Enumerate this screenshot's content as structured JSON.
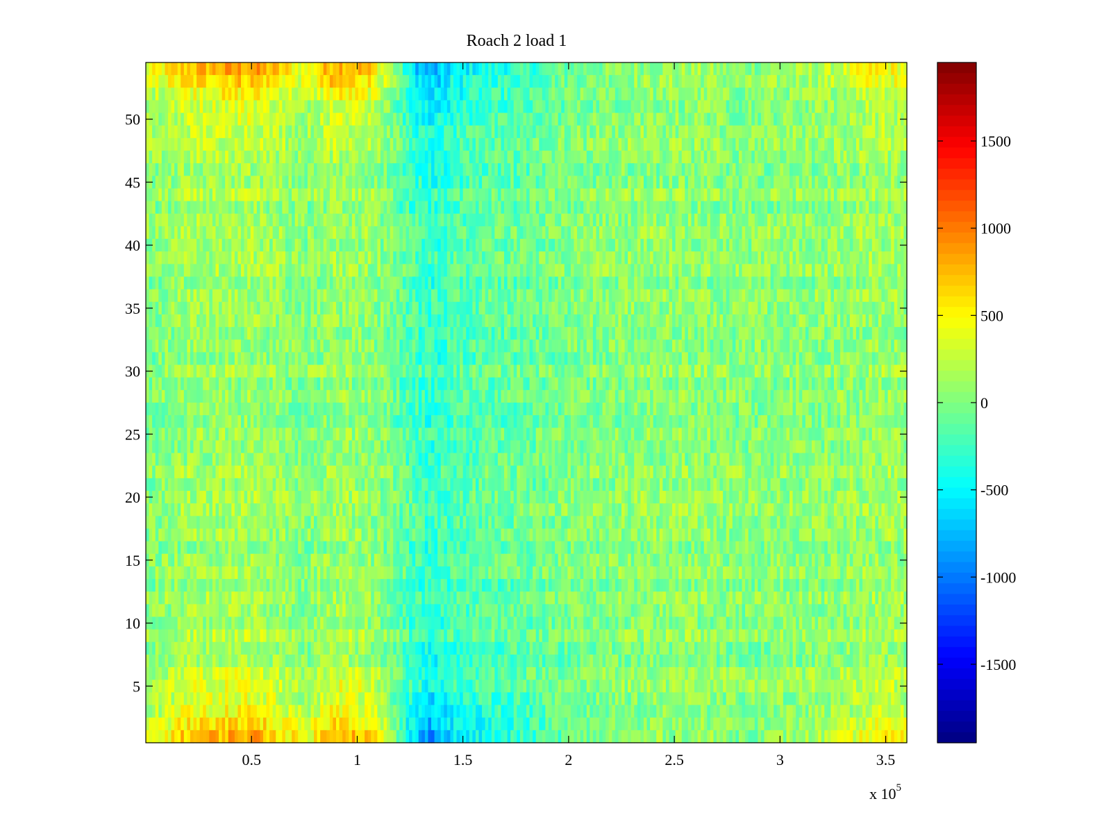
{
  "chart_data": {
    "type": "heatmap",
    "title": "Roach 2 load 1",
    "xlabel": "",
    "ylabel": "",
    "x_range": [
      0,
      360000
    ],
    "y_range": [
      0.5,
      54.5
    ],
    "x_ticks": [
      50000,
      100000,
      150000,
      200000,
      250000,
      300000,
      350000
    ],
    "x_tick_labels": [
      "0.5",
      "1",
      "1.5",
      "2",
      "2.5",
      "3",
      "3.5"
    ],
    "x_exponent_label": "x 10",
    "x_exponent_power": "5",
    "y_ticks": [
      5,
      10,
      15,
      20,
      25,
      30,
      35,
      40,
      45,
      50
    ],
    "y_tick_labels": [
      "5",
      "10",
      "15",
      "20",
      "25",
      "30",
      "35",
      "40",
      "45",
      "50"
    ],
    "rows": 54,
    "colormap": "jet",
    "color_range": [
      -1950,
      1950
    ],
    "colorbar": {
      "ticks": [
        -1500,
        -1000,
        -500,
        0,
        500,
        1000,
        1500
      ],
      "tick_labels": [
        "-1500",
        "-1000",
        "-500",
        "0",
        "500",
        "1000",
        "1500"
      ],
      "placement": "right"
    },
    "grid": false,
    "profile": {
      "description_of_pattern": "mean value by x position and band of rows",
      "x": [
        0,
        20000,
        50000,
        65000,
        75000,
        90000,
        105000,
        115000,
        125000,
        135000,
        145000,
        160000,
        180000,
        200000,
        230000,
        260000,
        280000,
        310000,
        330000,
        345000,
        360000
      ],
      "edge_rows": [
        300,
        700,
        850,
        600,
        350,
        850,
        700,
        200,
        -550,
        -900,
        -600,
        -450,
        -300,
        -100,
        50,
        100,
        0,
        100,
        250,
        500,
        400
      ],
      "middle_rows": [
        0,
        100,
        120,
        60,
        0,
        100,
        60,
        -20,
        -180,
        -280,
        -200,
        -120,
        -80,
        0,
        50,
        60,
        30,
        50,
        60,
        100,
        80
      ]
    }
  }
}
